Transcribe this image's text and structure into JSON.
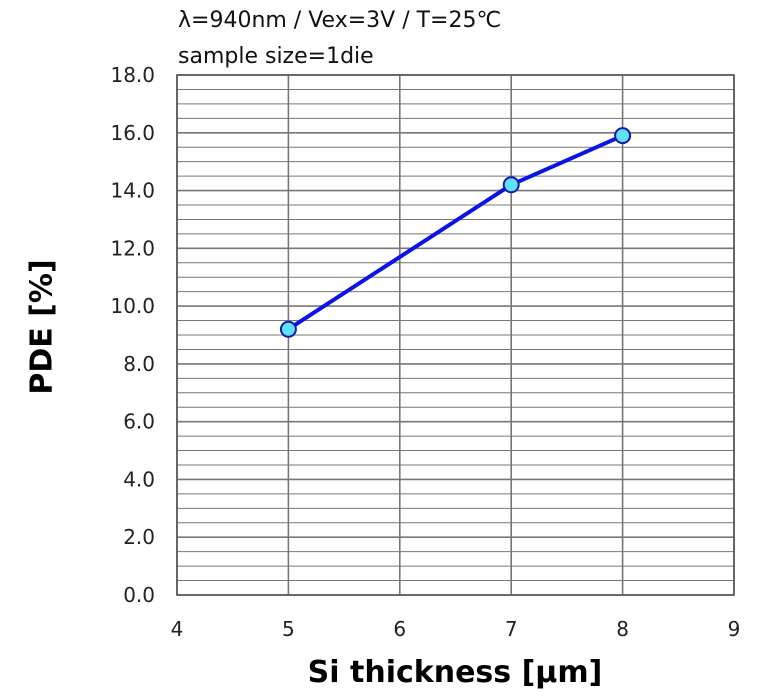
{
  "chart_data": {
    "type": "line",
    "annotations": [
      "λ=940nm / Vex=3V / T=25℃",
      "sample size=1die"
    ],
    "xlabel": "Si thickness [μm]",
    "ylabel": "PDE [%]",
    "xlim": [
      4,
      9
    ],
    "ylim": [
      0,
      18
    ],
    "x_ticks": [
      "4",
      "5",
      "6",
      "7",
      "8",
      "9"
    ],
    "y_ticks": [
      "0.0",
      "2.0",
      "4.0",
      "6.0",
      "8.0",
      "10.0",
      "12.0",
      "14.0",
      "16.0",
      "18.0"
    ],
    "grid": true,
    "series": [
      {
        "x": [
          5,
          7,
          8
        ],
        "y": [
          9.2,
          14.2,
          15.9
        ]
      }
    ],
    "colors": {
      "line": "#0a14e6",
      "marker_fill": "#5ee0ff",
      "marker_edge": "#1a1aa0",
      "grid": "#777777"
    }
  }
}
